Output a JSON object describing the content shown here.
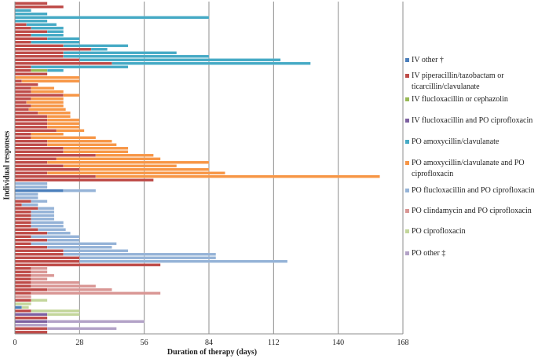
{
  "chart_data": {
    "type": "bar",
    "orientation": "horizontal",
    "stacked": true,
    "title": "",
    "xlabel": "Duration of therapy (days)",
    "ylabel": "Individual responses",
    "xlim": [
      0,
      168
    ],
    "xticks": [
      "0",
      "28",
      "56",
      "84",
      "112",
      "140",
      "168"
    ],
    "grid": true,
    "legend_position": "right",
    "legend": [
      {
        "key": "iv_other",
        "label": "IV other †",
        "color": "#4a7ebb"
      },
      {
        "key": "iv_pip",
        "label": "IV piperacillin/tazobactam or ticarcillin/clavulanate",
        "color": "#be4b48"
      },
      {
        "key": "iv_fluclox",
        "label": "IV flucloxacillin or cephazolin",
        "color": "#98b954"
      },
      {
        "key": "iv_fluclox_cipro",
        "label": "IV flucloxacillin and PO ciprofloxacin",
        "color": "#7d60a0"
      },
      {
        "key": "po_amox",
        "label": "PO amoxycillin/clavulanate",
        "color": "#46aac5"
      },
      {
        "key": "po_amox_cipro",
        "label": "PO amoxycillin/clavulanate and PO ciprofloxacin",
        "color": "#f79646"
      },
      {
        "key": "po_fluclox_cipro",
        "label": "PO flucloxacillin and PO ciprofloxacin",
        "color": "#95b3d7"
      },
      {
        "key": "po_clinda_cipro",
        "label": "PO clindamycin and PO ciprofloxacin",
        "color": "#d99694"
      },
      {
        "key": "po_cipro",
        "label": "PO ciprofloxacin",
        "color": "#c3d69b"
      },
      {
        "key": "po_other",
        "label": "PO other ‡",
        "color": "#b3a2c7"
      }
    ],
    "rows": [
      [
        [
          "iv_pip",
          14
        ]
      ],
      [
        [
          "iv_pip",
          21
        ]
      ],
      [
        [
          "po_amox",
          7
        ]
      ],
      [
        [
          "po_amox",
          14
        ]
      ],
      [
        [
          "po_amox",
          84
        ]
      ],
      [
        [
          "po_amox",
          14
        ]
      ],
      [
        [
          "iv_pip",
          5
        ],
        [
          "po_amox",
          13
        ]
      ],
      [
        [
          "iv_pip",
          7
        ],
        [
          "po_amox",
          14
        ]
      ],
      [
        [
          "iv_pip",
          14
        ],
        [
          "po_amox",
          7
        ]
      ],
      [
        [
          "iv_pip",
          7
        ],
        [
          "po_amox",
          14
        ]
      ],
      [
        [
          "iv_pip",
          14
        ],
        [
          "po_amox",
          14
        ]
      ],
      [
        [
          "iv_pip",
          7
        ],
        [
          "po_amox",
          21
        ]
      ],
      [
        [
          "iv_pip",
          21
        ],
        [
          "po_amox",
          28
        ]
      ],
      [
        [
          "iv_pip",
          33
        ],
        [
          "po_amox",
          7
        ]
      ],
      [
        [
          "iv_pip",
          21
        ],
        [
          "po_amox",
          49
        ]
      ],
      [
        [
          "iv_pip",
          21
        ],
        [
          "po_amox",
          63
        ]
      ],
      [
        [
          "iv_pip",
          28
        ],
        [
          "po_amox",
          87
        ]
      ],
      [
        [
          "iv_pip",
          42
        ],
        [
          "po_amox",
          86
        ]
      ],
      [
        [
          "iv_pip",
          7
        ],
        [
          "po_amox",
          42
        ]
      ],
      [
        [
          "iv_pip",
          7
        ],
        [
          "iv_fluclox",
          7
        ],
        [
          "po_amox",
          7
        ]
      ],
      [
        [
          "iv_pip",
          14
        ]
      ],
      [
        [
          "po_amox_cipro",
          28
        ]
      ],
      [
        [
          "iv_pip",
          3
        ],
        [
          "po_amox_cipro",
          25
        ]
      ],
      [
        [
          "iv_pip",
          10
        ]
      ],
      [
        [
          "iv_pip",
          7
        ],
        [
          "po_amox_cipro",
          10
        ]
      ],
      [
        [
          "iv_pip",
          7
        ],
        [
          "po_amox_cipro",
          14
        ]
      ],
      [
        [
          "iv_pip",
          21
        ],
        [
          "po_amox_cipro",
          7
        ]
      ],
      [
        [
          "iv_pip",
          7
        ],
        [
          "po_amox_cipro",
          14
        ]
      ],
      [
        [
          "iv_pip",
          5
        ],
        [
          "po_amox_cipro",
          16
        ]
      ],
      [
        [
          "iv_pip",
          7
        ],
        [
          "po_amox_cipro",
          14
        ]
      ],
      [
        [
          "iv_pip",
          6
        ],
        [
          "po_amox_cipro",
          16
        ]
      ],
      [
        [
          "iv_pip",
          10
        ],
        [
          "po_amox_cipro",
          14
        ]
      ],
      [
        [
          "iv_pip",
          14
        ],
        [
          "po_amox_cipro",
          10
        ]
      ],
      [
        [
          "iv_pip",
          14
        ],
        [
          "po_amox_cipro",
          14
        ]
      ],
      [
        [
          "iv_pip",
          14
        ],
        [
          "po_amox_cipro",
          14
        ]
      ],
      [
        [
          "iv_pip",
          14
        ],
        [
          "po_amox_cipro",
          14
        ]
      ],
      [
        [
          "iv_pip",
          18
        ],
        [
          "po_amox_cipro",
          12
        ]
      ],
      [
        [
          "iv_pip",
          7
        ],
        [
          "po_amox_cipro",
          14
        ]
      ],
      [
        [
          "iv_pip",
          7
        ],
        [
          "po_amox_cipro",
          28
        ]
      ],
      [
        [
          "iv_pip",
          14
        ],
        [
          "po_amox_cipro",
          28
        ]
      ],
      [
        [
          "iv_pip",
          14
        ],
        [
          "po_amox_cipro",
          30
        ]
      ],
      [
        [
          "iv_pip",
          21
        ],
        [
          "po_amox_cipro",
          28
        ]
      ],
      [
        [
          "iv_pip",
          21
        ],
        [
          "po_amox_cipro",
          28
        ]
      ],
      [
        [
          "iv_pip",
          35
        ],
        [
          "po_amox_cipro",
          25
        ]
      ],
      [
        [
          "iv_pip",
          18
        ],
        [
          "po_amox_cipro",
          45
        ]
      ],
      [
        [
          "iv_pip",
          14
        ],
        [
          "po_amox_cipro",
          70
        ]
      ],
      [
        [
          "iv_pip",
          21
        ],
        [
          "po_amox_cipro",
          49
        ]
      ],
      [
        [
          "iv_pip",
          28
        ],
        [
          "po_amox_cipro",
          56
        ]
      ],
      [
        [
          "iv_pip",
          14
        ],
        [
          "po_amox_cipro",
          77
        ]
      ],
      [
        [
          "iv_pip",
          35
        ],
        [
          "po_amox_cipro",
          123
        ]
      ],
      [
        [
          "iv_pip",
          60
        ]
      ],
      [
        [
          "po_fluclox_cipro",
          14
        ]
      ],
      [
        [
          "po_fluclox_cipro",
          14
        ]
      ],
      [
        [
          "iv_other",
          21
        ],
        [
          "po_fluclox_cipro",
          14
        ]
      ],
      [
        [
          "po_fluclox_cipro",
          10
        ]
      ],
      [
        [
          "po_fluclox_cipro",
          10
        ]
      ],
      [
        [
          "iv_pip",
          7
        ],
        [
          "po_fluclox_cipro",
          7
        ]
      ],
      [
        [
          "iv_pip",
          3
        ],
        [
          "po_fluclox_cipro",
          7
        ]
      ],
      [
        [
          "iv_pip",
          10
        ],
        [
          "po_fluclox_cipro",
          7
        ]
      ],
      [
        [
          "iv_pip",
          7
        ],
        [
          "po_fluclox_cipro",
          10
        ]
      ],
      [
        [
          "iv_pip",
          7
        ],
        [
          "po_fluclox_cipro",
          10
        ]
      ],
      [
        [
          "iv_pip",
          7
        ],
        [
          "po_fluclox_cipro",
          10
        ]
      ],
      [
        [
          "iv_pip",
          7
        ],
        [
          "po_fluclox_cipro",
          14
        ]
      ],
      [
        [
          "iv_pip",
          7
        ],
        [
          "po_fluclox_cipro",
          14
        ]
      ],
      [
        [
          "iv_pip",
          10
        ],
        [
          "po_fluclox_cipro",
          12
        ]
      ],
      [
        [
          "iv_pip",
          14
        ],
        [
          "po_fluclox_cipro",
          10
        ]
      ],
      [
        [
          "iv_pip",
          7
        ],
        [
          "po_fluclox_cipro",
          21
        ]
      ],
      [
        [
          "iv_pip",
          14
        ],
        [
          "po_fluclox_cipro",
          14
        ]
      ],
      [
        [
          "iv_pip",
          7
        ],
        [
          "po_fluclox_cipro",
          37
        ]
      ],
      [
        [
          "iv_pip",
          14
        ],
        [
          "po_fluclox_cipro",
          28
        ]
      ],
      [
        [
          "iv_pip",
          21
        ],
        [
          "po_fluclox_cipro",
          28
        ]
      ],
      [
        [
          "iv_pip",
          21
        ],
        [
          "po_fluclox_cipro",
          66
        ]
      ],
      [
        [
          "iv_pip",
          28
        ],
        [
          "po_fluclox_cipro",
          59
        ]
      ],
      [
        [
          "iv_pip",
          28
        ],
        [
          "po_fluclox_cipro",
          90
        ]
      ],
      [
        [
          "iv_pip",
          63
        ]
      ],
      [
        [
          "iv_pip",
          7
        ],
        [
          "po_clinda_cipro",
          7
        ]
      ],
      [
        [
          "iv_pip",
          7
        ],
        [
          "po_clinda_cipro",
          7
        ]
      ],
      [
        [
          "iv_pip",
          7
        ],
        [
          "po_clinda_cipro",
          10
        ]
      ],
      [
        [
          "iv_pip",
          7
        ],
        [
          "po_clinda_cipro",
          7
        ]
      ],
      [
        [
          "iv_pip",
          7
        ],
        [
          "po_clinda_cipro",
          21
        ]
      ],
      [
        [
          "iv_pip",
          7
        ],
        [
          "po_clinda_cipro",
          28
        ]
      ],
      [
        [
          "iv_pip",
          14
        ],
        [
          "po_clinda_cipro",
          28
        ]
      ],
      [
        [
          "iv_pip",
          7
        ],
        [
          "po_clinda_cipro",
          56
        ]
      ],
      [
        [
          "po_clinda_cipro",
          7
        ]
      ],
      [
        [
          "iv_pip",
          7
        ],
        [
          "po_cipro",
          7
        ]
      ],
      [
        [
          "po_cipro",
          7
        ]
      ],
      [
        [
          "iv_other",
          3
        ],
        [
          "po_cipro",
          3
        ]
      ],
      [
        [
          "iv_pip",
          7
        ],
        [
          "po_cipro",
          21
        ]
      ],
      [
        [
          "iv_fluclox_cipro",
          14
        ],
        [
          "po_cipro",
          14
        ]
      ],
      [
        [
          "iv_pip",
          14
        ]
      ],
      [
        [
          "iv_fluclox_cipro",
          14
        ],
        [
          "po_other",
          42
        ]
      ],
      [
        [
          "po_other",
          14
        ]
      ],
      [
        [
          "iv_pip",
          14
        ],
        [
          "po_other",
          30
        ]
      ],
      [
        [
          "iv_pip",
          14
        ]
      ]
    ]
  }
}
